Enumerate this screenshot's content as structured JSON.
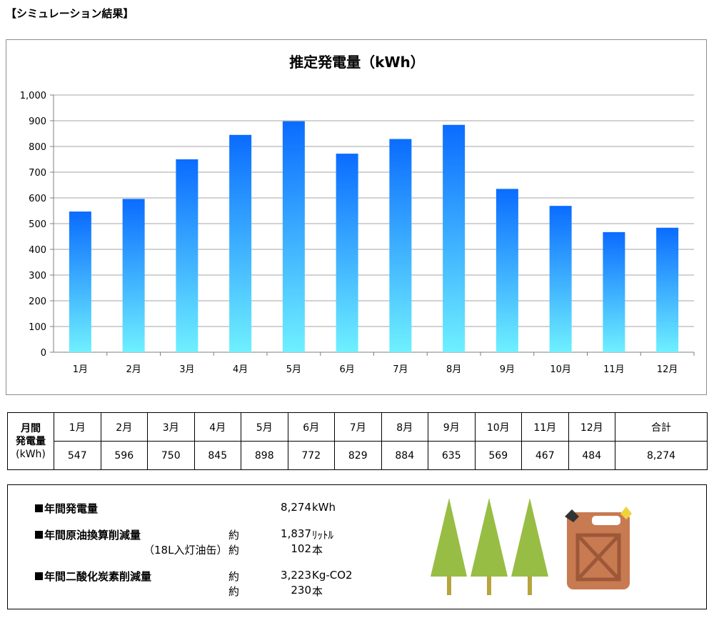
{
  "heading": "【シミュレーション結果】",
  "chart_data": {
    "type": "bar",
    "title": "推定発電量（kWh）",
    "categories": [
      "1月",
      "2月",
      "3月",
      "4月",
      "5月",
      "6月",
      "7月",
      "8月",
      "9月",
      "10月",
      "11月",
      "12月"
    ],
    "values": [
      547,
      596,
      750,
      845,
      898,
      772,
      829,
      884,
      635,
      569,
      467,
      484
    ],
    "ylim": [
      0,
      1000
    ],
    "yticks": [
      0,
      100,
      200,
      300,
      400,
      500,
      600,
      700,
      800,
      900,
      1000
    ],
    "ytick_labels": [
      "0",
      "100",
      "200",
      "300",
      "400",
      "500",
      "600",
      "700",
      "800",
      "900",
      "1,000"
    ],
    "grid": true,
    "colors": {
      "bar_top": "#0a6cff",
      "bar_bottom": "#6ff0ff",
      "grid": "#a6a6a6"
    }
  },
  "table": {
    "row_header": [
      "月間",
      "発電量",
      "(kWh)"
    ],
    "months": [
      "1月",
      "2月",
      "3月",
      "4月",
      "5月",
      "6月",
      "7月",
      "8月",
      "9月",
      "10月",
      "11月",
      "12月"
    ],
    "values": [
      "547",
      "596",
      "750",
      "845",
      "898",
      "772",
      "829",
      "884",
      "635",
      "569",
      "467",
      "484"
    ],
    "total_label": "合計",
    "total_value": "8,274"
  },
  "summary": {
    "annual_generation": {
      "label": "年間発電量",
      "value": "8,274",
      "unit": "kWh"
    },
    "crude_oil": {
      "label": "年間原油換算削減量",
      "approx": "約",
      "value": "1,837",
      "unit": "ﾘｯﾄﾙ"
    },
    "oil_can": {
      "label": "（18L入灯油缶）",
      "approx": "約",
      "value": "102",
      "unit": "本"
    },
    "co2": {
      "label": "年間二酸化炭素削減量",
      "approx": "約",
      "value": "3,223",
      "unit": "Kg-CO2"
    },
    "trees": {
      "approx": "約",
      "value": "230",
      "unit": "本"
    }
  },
  "icons": [
    "tree-icon",
    "tree-icon",
    "tree-icon",
    "fuel-can-icon"
  ],
  "illustration_colors": {
    "tree": "#98bd45",
    "trunk": "#b7a43e",
    "can": "#c87a51",
    "cap": "#f0d23c"
  }
}
